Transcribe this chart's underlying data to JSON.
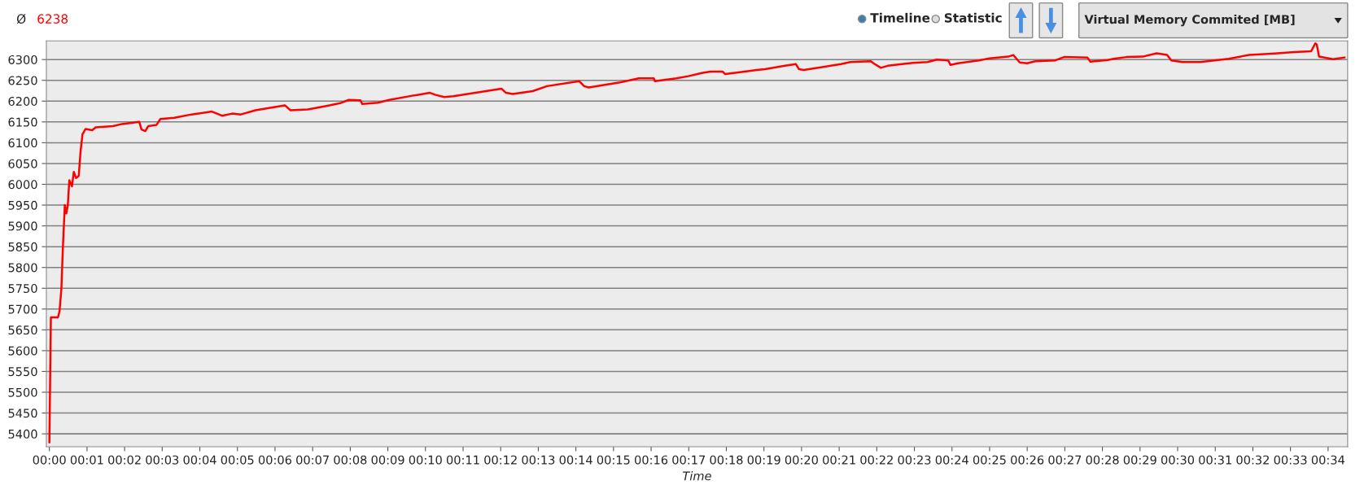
{
  "chart_data": {
    "type": "line",
    "ylabel": "Virtual Memory Commited [MB]",
    "xlabel": "Time",
    "annotations": [
      "Ø",
      "6238",
      "Timeline",
      "Statistic"
    ],
    "xlim": [
      -0.08,
      34.52
    ],
    "ylim": [
      5369,
      6345
    ],
    "xticks": [
      {
        "value": 0,
        "label": "00:00"
      },
      {
        "value": 1,
        "label": "00:01"
      },
      {
        "value": 2,
        "label": "00:02"
      },
      {
        "value": 3,
        "label": "00:03"
      },
      {
        "value": 4,
        "label": "00:04"
      },
      {
        "value": 5,
        "label": "00:05"
      },
      {
        "value": 6,
        "label": "00:06"
      },
      {
        "value": 7,
        "label": "00:07"
      },
      {
        "value": 8,
        "label": "00:08"
      },
      {
        "value": 9,
        "label": "00:09"
      },
      {
        "value": 10,
        "label": "00:10"
      },
      {
        "value": 11,
        "label": "00:11"
      },
      {
        "value": 12,
        "label": "00:12"
      },
      {
        "value": 13,
        "label": "00:13"
      },
      {
        "value": 14,
        "label": "00:14"
      },
      {
        "value": 15,
        "label": "00:15"
      },
      {
        "value": 16,
        "label": "00:16"
      },
      {
        "value": 17,
        "label": "00:17"
      },
      {
        "value": 18,
        "label": "00:18"
      },
      {
        "value": 19,
        "label": "00:19"
      },
      {
        "value": 20,
        "label": "00:20"
      },
      {
        "value": 21,
        "label": "00:21"
      },
      {
        "value": 22,
        "label": "00:22"
      },
      {
        "value": 23,
        "label": "00:23"
      },
      {
        "value": 24,
        "label": "00:24"
      },
      {
        "value": 25,
        "label": "00:25"
      },
      {
        "value": 26,
        "label": "00:26"
      },
      {
        "value": 27,
        "label": "00:27"
      },
      {
        "value": 28,
        "label": "00:28"
      },
      {
        "value": 29,
        "label": "00:29"
      },
      {
        "value": 30,
        "label": "00:30"
      },
      {
        "value": 31,
        "label": "00:31"
      },
      {
        "value": 32,
        "label": "00:32"
      },
      {
        "value": 33,
        "label": "00:33"
      },
      {
        "value": 34,
        "label": "00:34"
      }
    ],
    "yticks": [
      5400,
      5450,
      5500,
      5550,
      5600,
      5650,
      5700,
      5750,
      5800,
      5850,
      5900,
      5950,
      6000,
      6050,
      6100,
      6150,
      6200,
      6250,
      6300
    ],
    "grid": "y",
    "marker": "none",
    "line_style": "solid",
    "series": [
      {
        "color": "#ff0000",
        "x": [
          0,
          0.04,
          0.23,
          0.27,
          0.32,
          0.36,
          0.41,
          0.45,
          0.49,
          0.53,
          0.6,
          0.65,
          0.71,
          0.78,
          0.83,
          0.88,
          0.96,
          1.14,
          1.23,
          1.69,
          1.93,
          2.39,
          2.45,
          2.55,
          2.63,
          2.85,
          2.95,
          3.32,
          3.78,
          4.32,
          4.59,
          4.86,
          5.09,
          5.48,
          6.26,
          6.41,
          6.87,
          7.34,
          7.73,
          7.96,
          8.27,
          8.32,
          8.73,
          9.04,
          9.65,
          10.12,
          10.27,
          10.5,
          10.74,
          12.02,
          12.14,
          12.32,
          12.85,
          13.23,
          14.09,
          14.22,
          14.34,
          15.17,
          15.67,
          16.07,
          16.1,
          16.67,
          16.99,
          17.37,
          17.58,
          17.9,
          17.97,
          18.4,
          18.81,
          19.03,
          19.56,
          19.85,
          19.93,
          20.06,
          21.05,
          21.3,
          21.84,
          21.93,
          22.11,
          22.29,
          22.96,
          23.35,
          23.6,
          23.9,
          23.96,
          24.16,
          24.72,
          25.0,
          25.5,
          25.63,
          25.8,
          26.0,
          26.22,
          26.75,
          26.98,
          27.6,
          27.68,
          28.14,
          28.3,
          28.64,
          29.07,
          29.44,
          29.72,
          29.83,
          30.13,
          30.6,
          31.36,
          31.9,
          32.5,
          33.1,
          33.55,
          33.66,
          33.7,
          33.76,
          34.13,
          34.44
        ],
        "values": [
          5379,
          5680,
          5680,
          5695,
          5750,
          5850,
          5950,
          5930,
          5950,
          6010,
          5995,
          6030,
          6015,
          6020,
          6080,
          6120,
          6133,
          6130,
          6137,
          6140,
          6145,
          6150,
          6132,
          6128,
          6140,
          6143,
          6157,
          6160,
          6168,
          6175,
          6165,
          6170,
          6168,
          6178,
          6190,
          6178,
          6180,
          6188,
          6195,
          6203,
          6202,
          6193,
          6196,
          6203,
          6213,
          6220,
          6215,
          6210,
          6212,
          6230,
          6220,
          6217,
          6224,
          6236,
          6248,
          6236,
          6233,
          6245,
          6255,
          6255,
          6248,
          6255,
          6260,
          6268,
          6271,
          6271,
          6265,
          6270,
          6275,
          6277,
          6285,
          6289,
          6277,
          6275,
          6289,
          6294,
          6296,
          6290,
          6280,
          6285,
          6292,
          6294,
          6300,
          6298,
          6287,
          6291,
          6298,
          6303,
          6307,
          6311,
          6293,
          6291,
          6296,
          6298,
          6306,
          6305,
          6295,
          6299,
          6302,
          6306,
          6307,
          6315,
          6311,
          6298,
          6294,
          6294,
          6302,
          6311,
          6314,
          6318,
          6320,
          6339,
          6336,
          6307,
          6301,
          6305
        ]
      }
    ]
  }
}
